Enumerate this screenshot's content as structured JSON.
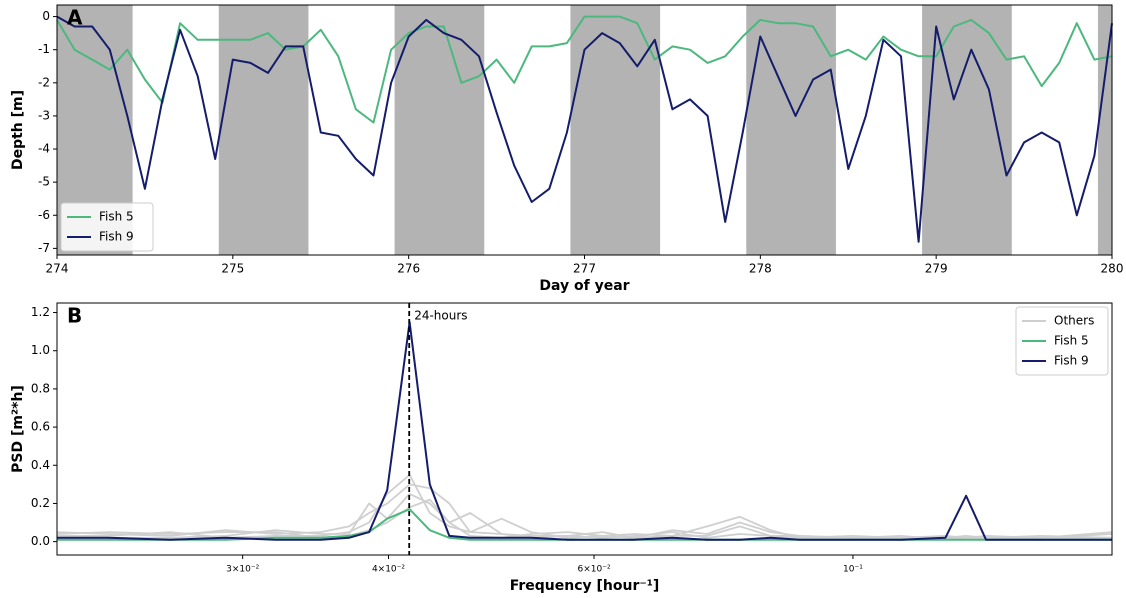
{
  "chart_data": [
    {
      "type": "line",
      "panel_label": "A",
      "xlabel": "Day of year",
      "ylabel": "Depth [m]",
      "xlim": [
        274,
        280
      ],
      "xticks": [
        274,
        275,
        276,
        277,
        278,
        279,
        280
      ],
      "ylim": [
        -7.2,
        0.35
      ],
      "yticks": [
        0,
        -1,
        -2,
        -3,
        -4,
        -5,
        -6,
        -7
      ],
      "shaded_spans": [
        [
          274,
          274.43
        ],
        [
          274.92,
          275.43
        ],
        [
          275.92,
          276.43
        ],
        [
          276.92,
          277.43
        ],
        [
          277.92,
          278.43
        ],
        [
          278.92,
          279.43
        ],
        [
          279.92,
          280
        ]
      ],
      "shade_color": "#b3b3b3",
      "legend": "lower left",
      "x": [
        274.0,
        274.1,
        274.2,
        274.3,
        274.4,
        274.5,
        274.6,
        274.7,
        274.8,
        274.9,
        275.0,
        275.1,
        275.2,
        275.3,
        275.4,
        275.5,
        275.6,
        275.7,
        275.8,
        275.9,
        276.0,
        276.1,
        276.2,
        276.3,
        276.4,
        276.5,
        276.6,
        276.7,
        276.8,
        276.9,
        277.0,
        277.1,
        277.2,
        277.3,
        277.4,
        277.5,
        277.6,
        277.7,
        277.8,
        277.9,
        278.0,
        278.1,
        278.2,
        278.3,
        278.4,
        278.5,
        278.6,
        278.7,
        278.8,
        278.9,
        279.0,
        279.1,
        279.2,
        279.3,
        279.4,
        279.5,
        279.6,
        279.7,
        279.8,
        279.9,
        280.0
      ],
      "series": [
        {
          "name": "Fish 5",
          "color": "#4cb87e",
          "values": [
            -0.1,
            -1.0,
            -1.3,
            -1.6,
            -1.0,
            -1.9,
            -2.6,
            -0.2,
            -0.7,
            -0.7,
            -0.7,
            -0.7,
            -0.5,
            -1.0,
            -0.9,
            -0.4,
            -1.2,
            -2.8,
            -3.2,
            -1.0,
            -0.5,
            -0.3,
            -0.3,
            -2.0,
            -1.8,
            -1.3,
            -2.0,
            -0.9,
            -0.9,
            -0.8,
            0,
            0,
            0,
            -0.2,
            -1.3,
            -0.9,
            -1.0,
            -1.4,
            -1.2,
            -0.6,
            -0.1,
            -0.2,
            -0.2,
            -0.3,
            -1.2,
            -1.0,
            -1.3,
            -0.6,
            -1.0,
            -1.2,
            -1.2,
            -0.3,
            -0.1,
            -0.5,
            -1.3,
            -1.2,
            -2.1,
            -1.4,
            -0.2,
            -1.3,
            -1.2
          ]
        },
        {
          "name": "Fish 9",
          "color": "#141c6b",
          "values": [
            0,
            -0.3,
            -0.3,
            -1.0,
            -3.0,
            -5.2,
            -2.5,
            -0.4,
            -1.8,
            -4.3,
            -1.3,
            -1.4,
            -1.7,
            -0.9,
            -0.9,
            -3.5,
            -3.6,
            -4.3,
            -4.8,
            -2.0,
            -0.6,
            -0.1,
            -0.5,
            -0.7,
            -1.2,
            -2.9,
            -4.5,
            -5.6,
            -5.2,
            -3.5,
            -1.0,
            -0.5,
            -0.8,
            -1.5,
            -0.7,
            -2.8,
            -2.5,
            -3.0,
            -6.2,
            -3.5,
            -0.6,
            -1.8,
            -3.0,
            -1.9,
            -1.6,
            -4.6,
            -3.0,
            -0.7,
            -1.2,
            -6.8,
            -0.3,
            -2.5,
            -1.0,
            -2.2,
            -4.8,
            -3.8,
            -3.5,
            -3.8,
            -6.0,
            -4.2,
            -0.2
          ]
        }
      ]
    },
    {
      "type": "line",
      "panel_label": "B",
      "xlabel": "Frequency [hour⁻¹]",
      "ylabel": "PSD [m²*h]",
      "xscale": "log",
      "xlim": [
        0.0208,
        0.1667
      ],
      "xticks": [
        {
          "value": 0.03,
          "label": "3×10⁻²"
        },
        {
          "value": 0.04,
          "label": "4×10⁻²"
        },
        {
          "value": 0.06,
          "label": "6×10⁻²"
        },
        {
          "value": 0.1,
          "label": "10⁻¹"
        }
      ],
      "ylim": [
        -0.07,
        1.25
      ],
      "yticks": [
        {
          "value": 0,
          "label": "0.0"
        },
        0.2,
        0.4,
        0.6,
        0.8,
        {
          "value": 1,
          "label": "1.0"
        },
        1.2
      ],
      "vline": {
        "x": 0.04167,
        "label": "24-hours"
      },
      "legend": "upper right",
      "x": [
        0.0208,
        0.023,
        0.026,
        0.029,
        0.032,
        0.035,
        0.037,
        0.0385,
        0.0399,
        0.0417,
        0.0434,
        0.0451,
        0.047,
        0.05,
        0.053,
        0.057,
        0.061,
        0.065,
        0.07,
        0.075,
        0.08,
        0.085,
        0.09,
        0.1,
        0.11,
        0.12,
        0.125,
        0.13,
        0.145,
        0.1667
      ],
      "series": [
        {
          "name": "Others",
          "color": "#cfcfcf",
          "values": [
            [
              0.05,
              0.04,
              0.03,
              0.06,
              0.04,
              0.05,
              0.08,
              0.15,
              0.2,
              0.3,
              0.28,
              0.2,
              0.05,
              0.04,
              0.03,
              0.03,
              0.05,
              0.02,
              0.06,
              0.04,
              0.1,
              0.05,
              0.03,
              0.02,
              0.02,
              0.02,
              0.03,
              0.02,
              0.02,
              0.04
            ],
            [
              0.03,
              0.03,
              0.05,
              0.02,
              0.03,
              0.03,
              0.05,
              0.1,
              0.25,
              0.35,
              0.15,
              0.08,
              0.05,
              0.12,
              0.05,
              0.02,
              0.03,
              0.04,
              0.03,
              0.08,
              0.13,
              0.06,
              0.02,
              0.03,
              0.02,
              0.03,
              0.02,
              0.02,
              0.03,
              0.02
            ],
            [
              0.02,
              0.02,
              0.02,
              0.03,
              0.06,
              0.04,
              0.04,
              0.2,
              0.12,
              0.25,
              0.2,
              0.1,
              0.15,
              0.04,
              0.02,
              0.03,
              0.02,
              0.03,
              0.05,
              0.02,
              0.04,
              0.03,
              0.02,
              0.02,
              0.03,
              0.01,
              0.02,
              0.03,
              0.02,
              0.02
            ],
            [
              0.04,
              0.05,
              0.04,
              0.05,
              0.05,
              0.02,
              0.03,
              0.06,
              0.1,
              0.18,
              0.22,
              0.1,
              0.03,
              0.02,
              0.04,
              0.05,
              0.03,
              0.02,
              0.03,
              0.03,
              0.08,
              0.03,
              0.03,
              0.02,
              0.02,
              0.02,
              0.02,
              0.02,
              0.02,
              0.05
            ]
          ]
        },
        {
          "name": "Fish 5",
          "color": "#4cb87e",
          "values": [
            0.01,
            0.01,
            0.01,
            0.01,
            0.02,
            0.02,
            0.03,
            0.05,
            0.12,
            0.17,
            0.06,
            0.02,
            0.01,
            0.01,
            0.01,
            0.01,
            0.01,
            0.01,
            0.01,
            0.01,
            0.01,
            0.01,
            0.01,
            0.01,
            0.01,
            0.01,
            0.01,
            0.01,
            0.01,
            0.01
          ]
        },
        {
          "name": "Fish 9",
          "color": "#141c6b",
          "values": [
            0.02,
            0.02,
            0.01,
            0.02,
            0.01,
            0.01,
            0.02,
            0.05,
            0.27,
            1.15,
            0.3,
            0.03,
            0.02,
            0.02,
            0.02,
            0.01,
            0.01,
            0.01,
            0.02,
            0.01,
            0.01,
            0.02,
            0.01,
            0.01,
            0.01,
            0.02,
            0.24,
            0.01,
            0.01,
            0.01
          ]
        }
      ]
    }
  ]
}
